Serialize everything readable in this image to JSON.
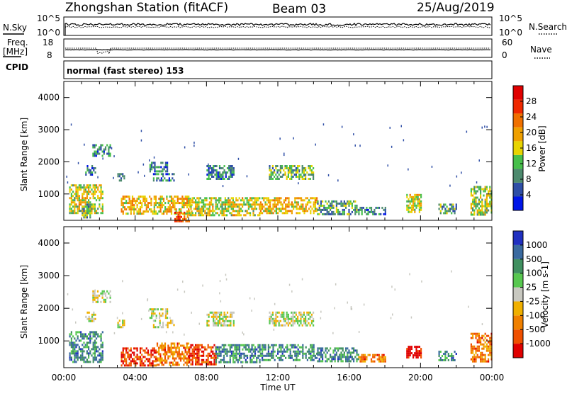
{
  "header": {
    "station": "Zhongshan Station (fitACF)",
    "beam": "Beam 03",
    "date": "25/Aug/2019"
  },
  "top_panels": {
    "nsky_label": "N.Sky",
    "nsky_ticks": [
      "10^5",
      "10^0"
    ],
    "nsearch_label": "N.Search",
    "nsearch_ticks": [
      "10^5",
      "10^0"
    ],
    "freq_label": "Freq.",
    "freq_unit": "[MHz]",
    "freq_ticks": [
      "18",
      "8"
    ],
    "nave_label": "Nave",
    "nave_ticks": [
      "60",
      "0"
    ],
    "cpid_label": "CPID",
    "cpid_text": "normal (fast stereo) 153"
  },
  "colors": {
    "power_scale": [
      "#0015e8",
      "#2e4ea6",
      "#4d8a6e",
      "#47c04b",
      "#e8d400",
      "#f0a000",
      "#f07000",
      "#f02800",
      "#e00000"
    ],
    "velocity_scale": [
      "#e00000",
      "#f05000",
      "#f08000",
      "#f0b000",
      "#c8c8c0",
      "#58c850",
      "#409060",
      "#3a6aa0",
      "#2030c0"
    ]
  },
  "chart_data": [
    {
      "type": "heatmap",
      "name": "power",
      "ylabel": "Slant Range [km]",
      "yticks": [
        "1000",
        "2000",
        "3000",
        "4000"
      ],
      "ylim": [
        180,
        4500
      ],
      "xlim": [
        0,
        24
      ],
      "colorbar_label": "Power [dB]",
      "colorbar_ticks": [
        "4",
        "8",
        "12",
        "16",
        "20",
        "24",
        "28"
      ],
      "colorbar_range": [
        0,
        32
      ],
      "regions": [
        {
          "t0": 0.3,
          "t1": 2.2,
          "r0": 380,
          "r1": 1300,
          "v": 16
        },
        {
          "t0": 1.0,
          "t1": 1.6,
          "r0": 250,
          "r1": 700,
          "v": 12
        },
        {
          "t0": 1.6,
          "t1": 2.6,
          "r0": 2200,
          "r1": 2550,
          "v": 8
        },
        {
          "t0": 1.2,
          "t1": 1.8,
          "r0": 1600,
          "r1": 1900,
          "v": 8
        },
        {
          "t0": 3.0,
          "t1": 3.4,
          "r0": 1450,
          "r1": 1650,
          "v": 8
        },
        {
          "t0": 3.2,
          "t1": 7.2,
          "r0": 380,
          "r1": 950,
          "v": 18
        },
        {
          "t0": 4.8,
          "t1": 5.8,
          "r0": 1700,
          "r1": 2000,
          "v": 8
        },
        {
          "t0": 5.0,
          "t1": 6.2,
          "r0": 1450,
          "r1": 1650,
          "v": 8
        },
        {
          "t0": 6.2,
          "t1": 7.0,
          "r0": 180,
          "r1": 450,
          "v": 24
        },
        {
          "t0": 7.0,
          "t1": 11.0,
          "r0": 350,
          "r1": 900,
          "v": 16
        },
        {
          "t0": 8.0,
          "t1": 9.5,
          "r0": 1500,
          "r1": 1900,
          "v": 8
        },
        {
          "t0": 11.0,
          "t1": 14.2,
          "r0": 380,
          "r1": 900,
          "v": 18
        },
        {
          "t0": 11.5,
          "t1": 14.0,
          "r0": 1450,
          "r1": 1900,
          "v": 12
        },
        {
          "t0": 14.2,
          "t1": 16.5,
          "r0": 350,
          "r1": 800,
          "v": 10
        },
        {
          "t0": 16.5,
          "t1": 18.0,
          "r0": 400,
          "r1": 600,
          "v": 8
        },
        {
          "t0": 19.2,
          "t1": 20.0,
          "r0": 450,
          "r1": 1000,
          "v": 16
        },
        {
          "t0": 21.0,
          "t1": 22.0,
          "r0": 400,
          "r1": 700,
          "v": 10
        },
        {
          "t0": 22.8,
          "t1": 24.0,
          "r0": 350,
          "r1": 1250,
          "v": 14
        }
      ]
    },
    {
      "type": "heatmap",
      "name": "velocity",
      "ylabel": "Slant Range [km]",
      "yticks": [
        "1000",
        "2000",
        "3000",
        "4000"
      ],
      "ylim": [
        180,
        4500
      ],
      "xlim": [
        0,
        24
      ],
      "xticks": [
        "00:00",
        "04:00",
        "08:00",
        "12:00",
        "16:00",
        "20:00",
        "00:00"
      ],
      "xlabel": "Time UT",
      "colorbar_label": "Velocity [m s-1]",
      "colorbar_ticks": [
        "-1000",
        "-500",
        "-100",
        "-25",
        "25",
        "100",
        "500",
        "1000"
      ],
      "colorbar_range": [
        0,
        8
      ],
      "regions": [
        {
          "t0": 0.3,
          "t1": 2.2,
          "r0": 380,
          "r1": 1300,
          "v": 6
        },
        {
          "t0": 1.6,
          "t1": 2.6,
          "r0": 2200,
          "r1": 2550,
          "v": 4
        },
        {
          "t0": 1.2,
          "t1": 1.8,
          "r0": 1600,
          "r1": 1900,
          "v": 4
        },
        {
          "t0": 3.0,
          "t1": 3.4,
          "r0": 1450,
          "r1": 1650,
          "v": 4
        },
        {
          "t0": 3.2,
          "t1": 5.2,
          "r0": 250,
          "r1": 800,
          "v": 1
        },
        {
          "t0": 5.2,
          "t1": 7.0,
          "r0": 250,
          "r1": 950,
          "v": 2
        },
        {
          "t0": 4.8,
          "t1": 5.8,
          "r0": 1700,
          "r1": 2000,
          "v": 4
        },
        {
          "t0": 5.0,
          "t1": 6.2,
          "r0": 1450,
          "r1": 1650,
          "v": 4
        },
        {
          "t0": 7.0,
          "t1": 8.5,
          "r0": 300,
          "r1": 900,
          "v": 1
        },
        {
          "t0": 8.5,
          "t1": 11.0,
          "r0": 350,
          "r1": 900,
          "v": 6
        },
        {
          "t0": 8.0,
          "t1": 9.5,
          "r0": 1500,
          "r1": 1900,
          "v": 4
        },
        {
          "t0": 11.0,
          "t1": 14.2,
          "r0": 380,
          "r1": 900,
          "v": 6
        },
        {
          "t0": 11.5,
          "t1": 14.0,
          "r0": 1450,
          "r1": 1900,
          "v": 4
        },
        {
          "t0": 14.2,
          "t1": 16.5,
          "r0": 350,
          "r1": 800,
          "v": 6
        },
        {
          "t0": 16.5,
          "t1": 18.0,
          "r0": 400,
          "r1": 600,
          "v": 2
        },
        {
          "t0": 19.2,
          "t1": 20.0,
          "r0": 500,
          "r1": 850,
          "v": 0
        },
        {
          "t0": 21.0,
          "t1": 22.0,
          "r0": 400,
          "r1": 700,
          "v": 6
        },
        {
          "t0": 22.8,
          "t1": 24.0,
          "r0": 350,
          "r1": 1250,
          "v": 2
        }
      ]
    }
  ]
}
